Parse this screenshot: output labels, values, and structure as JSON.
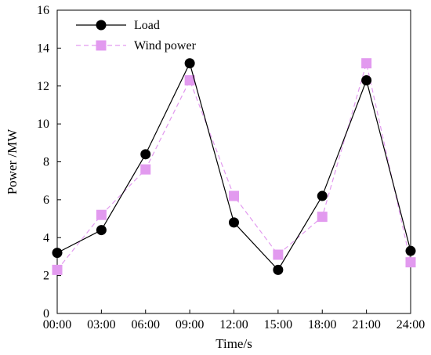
{
  "chart_data": {
    "type": "line",
    "title": "",
    "xlabel": "Time/s",
    "ylabel": "Power /MW",
    "categories": [
      "00:00",
      "03:00",
      "06:00",
      "09:00",
      "12:00",
      "15:00",
      "18:00",
      "21:00",
      "24:00"
    ],
    "ylim": [
      0,
      16
    ],
    "yticks": [
      0,
      2,
      4,
      6,
      8,
      10,
      12,
      14,
      16
    ],
    "grid": false,
    "legend_position": "top-left",
    "series": [
      {
        "name": "Load",
        "values": [
          3.2,
          4.4,
          8.4,
          13.2,
          4.8,
          2.3,
          6.2,
          12.3,
          3.3
        ],
        "color": "#000000",
        "line_style": "solid",
        "marker": "circle"
      },
      {
        "name": "Wind power",
        "values": [
          2.3,
          5.2,
          7.6,
          12.3,
          6.2,
          3.1,
          5.1,
          13.2,
          2.7
        ],
        "color": "#e29aef",
        "line_style": "dashed",
        "marker": "square"
      }
    ]
  }
}
